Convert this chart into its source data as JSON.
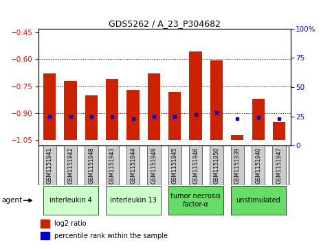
{
  "title": "GDS5262 / A_23_P304682",
  "samples": [
    "GSM1151941",
    "GSM1151942",
    "GSM1151948",
    "GSM1151943",
    "GSM1151944",
    "GSM1151949",
    "GSM1151945",
    "GSM1151946",
    "GSM1151950",
    "GSM1151939",
    "GSM1151940",
    "GSM1151947"
  ],
  "log2_ratios": [
    -0.68,
    -0.72,
    -0.8,
    -0.71,
    -0.77,
    -0.68,
    -0.78,
    -0.555,
    -0.605,
    -1.02,
    -0.82,
    -0.95
  ],
  "percentile_ranks": [
    22,
    22,
    22,
    22,
    20,
    22,
    22,
    24,
    26,
    20,
    21,
    20
  ],
  "agents": [
    {
      "label": "interleukin 4",
      "samples": [
        0,
        1,
        2
      ],
      "color": "#ccffcc"
    },
    {
      "label": "interleukin 13",
      "samples": [
        3,
        4,
        5
      ],
      "color": "#ccffcc"
    },
    {
      "label": "tumor necrosis\nfactor-α",
      "samples": [
        6,
        7,
        8
      ],
      "color": "#66dd66"
    },
    {
      "label": "unstimulated",
      "samples": [
        9,
        10,
        11
      ],
      "color": "#66dd66"
    }
  ],
  "ylim_left": [
    -1.08,
    -0.43
  ],
  "ylim_right": [
    0,
    100
  ],
  "yticks_left": [
    -1.05,
    -0.9,
    -0.75,
    -0.6,
    -0.45
  ],
  "yticks_right": [
    0,
    25,
    50,
    75,
    100
  ],
  "bar_color": "#cc2200",
  "blue_color": "#0000cc",
  "bg_color": "#ffffff",
  "sample_bg": "#cccccc",
  "bar_bottom": -1.05,
  "bar_width": 0.6,
  "n_samples": 12
}
